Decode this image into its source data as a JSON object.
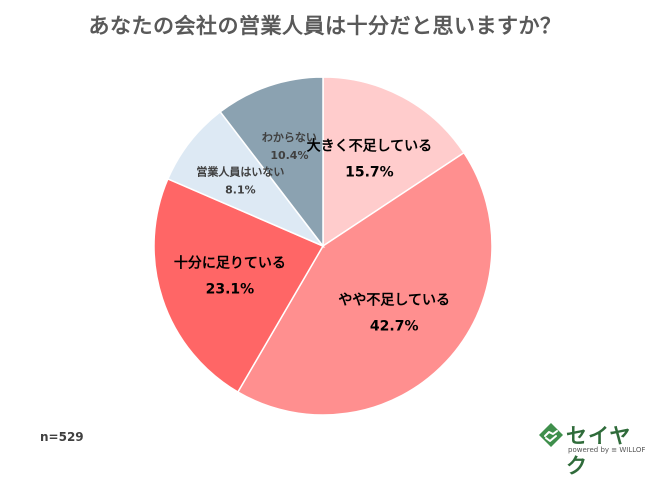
{
  "title": "あなたの会社の営業人員は十分だと思いますか？",
  "sample_note": "n=529",
  "logo": {
    "name": "セイヤク",
    "tagline": "powered by ≡ WILLOF"
  },
  "chart_data": {
    "type": "pie",
    "start": "12 o'clock",
    "direction": "clockwise",
    "slices": [
      {
        "label": "大きく不足している",
        "value": 15.7,
        "value_label": "15.7%",
        "color": "#ffcccc",
        "label_size": "large"
      },
      {
        "label": "やや不足している",
        "value": 42.7,
        "value_label": "42.7%",
        "color": "#ff8f8f",
        "label_size": "large"
      },
      {
        "label": "十分に足りている",
        "value": 23.1,
        "value_label": "23.1%",
        "color": "#ff6666",
        "label_size": "large"
      },
      {
        "label": "営業人員はいない",
        "value": 8.1,
        "value_label": "8.1%",
        "color": "#dde9f4",
        "label_size": "small"
      },
      {
        "label": "わからない",
        "value": 10.4,
        "value_label": "10.4%",
        "color": "#8ba2b1",
        "label_size": "small"
      }
    ]
  }
}
